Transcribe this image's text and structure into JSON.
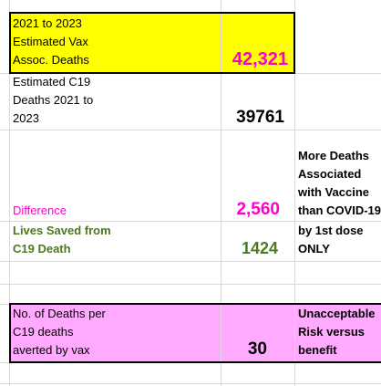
{
  "colors": {
    "yellow": "#ffff00",
    "pink": "#ffaaff",
    "magenta_text": "#ff00cc",
    "green_text": "#4a7a1e",
    "black_text": "#000000"
  },
  "rows": {
    "vax_deaths": {
      "label_lines": [
        "2021 to 2023",
        "Estimated Vax",
        "Assoc. Deaths"
      ],
      "value": "42,321"
    },
    "c19_deaths": {
      "label_lines": [
        "Estimated C19",
        "Deaths 2021 to",
        "2023"
      ],
      "value": "39761"
    },
    "difference": {
      "label": "Difference",
      "value": "2,560"
    },
    "lives_saved": {
      "label_lines": [
        "Lives Saved from",
        "C19 Death"
      ],
      "value": "1424"
    },
    "deaths_per_averted": {
      "label_lines": [
        "No. of Deaths per",
        "C19 deaths",
        "averted by vax"
      ],
      "value": "30"
    }
  },
  "notes": {
    "more_deaths_lines": [
      "More Deaths",
      "Associated",
      "with Vaccine",
      "than COVID-19",
      "by 1st dose",
      "ONLY"
    ],
    "risk_lines": [
      "Unacceptable",
      "Risk versus",
      "benefit"
    ]
  }
}
